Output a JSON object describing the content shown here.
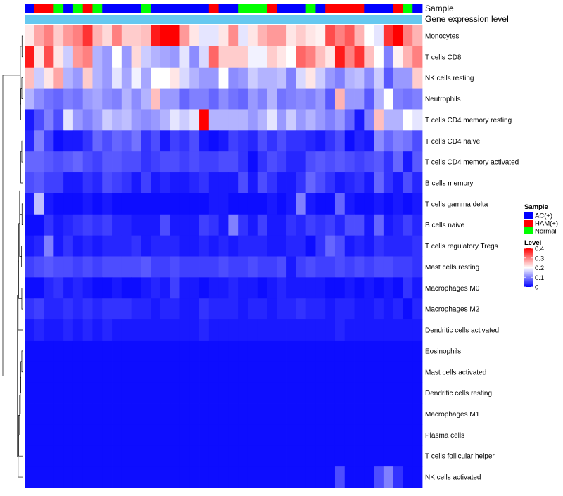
{
  "chart_data": {
    "type": "heatmap",
    "title": "",
    "annotation_rows": [
      "Sample",
      "Gene expression level"
    ],
    "sample_groups": [
      "AC(+)",
      "HAM(+)",
      "HAM(+)",
      "Normal",
      "AC(+)",
      "Normal",
      "HAM(+)",
      "Normal",
      "AC(+)",
      "AC(+)",
      "AC(+)",
      "AC(+)",
      "Normal",
      "AC(+)",
      "AC(+)",
      "AC(+)",
      "AC(+)",
      "AC(+)",
      "AC(+)",
      "HAM(+)",
      "AC(+)",
      "AC(+)",
      "Normal",
      "Normal",
      "Normal",
      "HAM(+)",
      "AC(+)",
      "AC(+)",
      "AC(+)",
      "Normal",
      "AC(+)",
      "HAM(+)",
      "HAM(+)",
      "HAM(+)",
      "HAM(+)",
      "AC(+)",
      "AC(+)",
      "AC(+)",
      "HAM(+)",
      "Normal",
      "AC(+)"
    ],
    "rows": [
      "Monocytes",
      "T cells CD8",
      "NK cells resting",
      "Neutrophils",
      "T cells CD4 memory resting",
      "T cells CD4 naive",
      "T cells CD4 memory activated",
      "B cells memory",
      "T cells gamma delta",
      "B cells naive",
      "T cells regulatory  Tregs",
      "Mast cells resting",
      "Macrophages M0",
      "Macrophages M2",
      "Dendritic cells activated",
      "Eosinophils",
      "Mast cells activated",
      "Dendritic cells resting",
      "Macrophages M1",
      "Plasma cells",
      "T cells follicular helper",
      "NK cells activated"
    ],
    "values": [
      [
        0.22,
        0.27,
        0.3,
        0.24,
        0.28,
        0.3,
        0.36,
        0.26,
        0.23,
        0.3,
        0.24,
        0.24,
        0.25,
        0.38,
        0.4,
        0.4,
        0.28,
        0.22,
        0.18,
        0.18,
        0.22,
        0.29,
        0.18,
        0.22,
        0.26,
        0.28,
        0.28,
        0.22,
        0.24,
        0.22,
        0.21,
        0.34,
        0.3,
        0.33,
        0.26,
        0.2,
        0.18,
        0.36,
        0.4,
        0.3,
        0.26
      ],
      [
        0.38,
        0.22,
        0.34,
        0.22,
        0.16,
        0.28,
        0.3,
        0.14,
        0.12,
        0.2,
        0.12,
        0.23,
        0.16,
        0.14,
        0.13,
        0.12,
        0.18,
        0.11,
        0.17,
        0.32,
        0.24,
        0.24,
        0.24,
        0.19,
        0.19,
        0.24,
        0.22,
        0.2,
        0.32,
        0.3,
        0.25,
        0.22,
        0.38,
        0.3,
        0.36,
        0.25,
        0.2,
        0.1,
        0.21,
        0.26,
        0.3
      ],
      [
        0.25,
        0.16,
        0.22,
        0.27,
        0.14,
        0.12,
        0.24,
        0.14,
        0.12,
        0.18,
        0.13,
        0.19,
        0.13,
        0.2,
        0.2,
        0.22,
        0.17,
        0.14,
        0.12,
        0.12,
        0.2,
        0.11,
        0.12,
        0.16,
        0.14,
        0.14,
        0.15,
        0.1,
        0.17,
        0.22,
        0.16,
        0.12,
        0.1,
        0.14,
        0.15,
        0.11,
        0.16,
        0.07,
        0.12,
        0.12,
        0.24
      ],
      [
        0.14,
        0.11,
        0.09,
        0.08,
        0.1,
        0.09,
        0.12,
        0.13,
        0.11,
        0.1,
        0.14,
        0.11,
        0.14,
        0.25,
        0.12,
        0.12,
        0.08,
        0.1,
        0.1,
        0.08,
        0.11,
        0.09,
        0.08,
        0.12,
        0.1,
        0.14,
        0.09,
        0.1,
        0.11,
        0.1,
        0.12,
        0.07,
        0.26,
        0.12,
        0.12,
        0.07,
        0.14,
        0.2,
        0.1,
        0.09,
        0.1
      ],
      [
        0.02,
        0.06,
        0.1,
        0.06,
        0.18,
        0.12,
        0.1,
        0.12,
        0.16,
        0.14,
        0.15,
        0.12,
        0.11,
        0.12,
        0.14,
        0.18,
        0.16,
        0.18,
        0.4,
        0.14,
        0.14,
        0.14,
        0.14,
        0.12,
        0.14,
        0.18,
        0.12,
        0.16,
        0.12,
        0.14,
        0.12,
        0.1,
        0.12,
        0.08,
        0.02,
        0.1,
        0.25,
        0.14,
        0.14,
        0.2,
        0.18
      ],
      [
        0.03,
        0.1,
        0.05,
        0.01,
        0.02,
        0.02,
        0.04,
        0.08,
        0.06,
        0.08,
        0.07,
        0.09,
        0.04,
        0.06,
        0.02,
        0.05,
        0.04,
        0.06,
        0.02,
        0.01,
        0.02,
        0.05,
        0.04,
        0.03,
        0.06,
        0.04,
        0.06,
        0.04,
        0.04,
        0.03,
        0.02,
        0.04,
        0.06,
        0.01,
        0.03,
        0.02,
        0.11,
        0.08,
        0.1,
        0.09,
        0.06
      ],
      [
        0.08,
        0.08,
        0.07,
        0.06,
        0.07,
        0.08,
        0.06,
        0.05,
        0.07,
        0.07,
        0.06,
        0.06,
        0.04,
        0.05,
        0.06,
        0.06,
        0.05,
        0.06,
        0.05,
        0.05,
        0.06,
        0.06,
        0.04,
        0.01,
        0.04,
        0.06,
        0.05,
        0.03,
        0.03,
        0.06,
        0.07,
        0.06,
        0.07,
        0.06,
        0.05,
        0.06,
        0.07,
        0.04,
        0.08,
        0.02,
        0.07
      ],
      [
        0.06,
        0.07,
        0.05,
        0.05,
        0.02,
        0.02,
        0.04,
        0.03,
        0.06,
        0.05,
        0.04,
        0.02,
        0.05,
        0.02,
        0.03,
        0.02,
        0.02,
        0.03,
        0.04,
        0.02,
        0.02,
        0.02,
        0.06,
        0.02,
        0.06,
        0.04,
        0.02,
        0.02,
        0.04,
        0.08,
        0.06,
        0.04,
        0.02,
        0.03,
        0.04,
        0.02,
        0.08,
        0.04,
        0.02,
        0.06,
        0.03
      ],
      [
        0.02,
        0.15,
        0.02,
        0.01,
        0.01,
        0.01,
        0.02,
        0.01,
        0.02,
        0.01,
        0.01,
        0.01,
        0.01,
        0.01,
        0.01,
        0.01,
        0.01,
        0.01,
        0.01,
        0.02,
        0.02,
        0.01,
        0.01,
        0.01,
        0.01,
        0.02,
        0.01,
        0.02,
        0.1,
        0.02,
        0.01,
        0.01,
        0.08,
        0.02,
        0.01,
        0.01,
        0.02,
        0.01,
        0.02,
        0.01,
        0.02
      ],
      [
        0.01,
        0.01,
        0.04,
        0.02,
        0.03,
        0.04,
        0.05,
        0.04,
        0.05,
        0.03,
        0.03,
        0.02,
        0.02,
        0.02,
        0.06,
        0.02,
        0.02,
        0.02,
        0.05,
        0.04,
        0.02,
        0.1,
        0.04,
        0.02,
        0.05,
        0.02,
        0.02,
        0.04,
        0.03,
        0.05,
        0.04,
        0.05,
        0.03,
        0.06,
        0.06,
        0.02,
        0.08,
        0.02,
        0.03,
        0.05,
        0.03
      ],
      [
        0.02,
        0.03,
        0.1,
        0.02,
        0.04,
        0.02,
        0.03,
        0.02,
        0.03,
        0.03,
        0.03,
        0.04,
        0.02,
        0.03,
        0.03,
        0.03,
        0.02,
        0.02,
        0.03,
        0.02,
        0.03,
        0.02,
        0.03,
        0.03,
        0.03,
        0.02,
        0.02,
        0.03,
        0.03,
        0.01,
        0.04,
        0.08,
        0.06,
        0.02,
        0.03,
        0.02,
        0.04,
        0.03,
        0.03,
        0.03,
        0.04
      ],
      [
        0.05,
        0.06,
        0.07,
        0.06,
        0.06,
        0.05,
        0.06,
        0.05,
        0.06,
        0.06,
        0.06,
        0.06,
        0.07,
        0.05,
        0.05,
        0.06,
        0.05,
        0.05,
        0.05,
        0.05,
        0.06,
        0.05,
        0.05,
        0.06,
        0.05,
        0.05,
        0.06,
        0.02,
        0.05,
        0.06,
        0.05,
        0.05,
        0.06,
        0.05,
        0.06,
        0.05,
        0.06,
        0.06,
        0.05,
        0.05,
        0.04
      ],
      [
        0.01,
        0.01,
        0.03,
        0.04,
        0.02,
        0.03,
        0.02,
        0.01,
        0.01,
        0.02,
        0.01,
        0.01,
        0.02,
        0.03,
        0.02,
        0.05,
        0.02,
        0.02,
        0.01,
        0.02,
        0.02,
        0.03,
        0.02,
        0.02,
        0.01,
        0.02,
        0.03,
        0.02,
        0.02,
        0.02,
        0.02,
        0.01,
        0.01,
        0.02,
        0.01,
        0.02,
        0.01,
        0.02,
        0.01,
        0.04,
        0.02
      ],
      [
        0.04,
        0.05,
        0.03,
        0.03,
        0.04,
        0.03,
        0.04,
        0.03,
        0.04,
        0.04,
        0.04,
        0.03,
        0.03,
        0.02,
        0.03,
        0.03,
        0.02,
        0.02,
        0.04,
        0.03,
        0.03,
        0.03,
        0.02,
        0.03,
        0.03,
        0.02,
        0.03,
        0.03,
        0.04,
        0.03,
        0.03,
        0.02,
        0.03,
        0.03,
        0.02,
        0.02,
        0.03,
        0.02,
        0.03,
        0.01,
        0.03
      ],
      [
        0.02,
        0.03,
        0.02,
        0.02,
        0.03,
        0.02,
        0.03,
        0.02,
        0.03,
        0.02,
        0.02,
        0.02,
        0.02,
        0.02,
        0.02,
        0.02,
        0.02,
        0.02,
        0.03,
        0.02,
        0.02,
        0.02,
        0.02,
        0.02,
        0.02,
        0.02,
        0.02,
        0.02,
        0.02,
        0.02,
        0.02,
        0.02,
        0.03,
        0.02,
        0.02,
        0.02,
        0.02,
        0.02,
        0.02,
        0.02,
        0.02
      ],
      [
        0.01,
        0.01,
        0.01,
        0.01,
        0.01,
        0.01,
        0.01,
        0.01,
        0.01,
        0.01,
        0.01,
        0.01,
        0.01,
        0.01,
        0.01,
        0.01,
        0.01,
        0.01,
        0.01,
        0.01,
        0.01,
        0.01,
        0.01,
        0.01,
        0.01,
        0.01,
        0.01,
        0.01,
        0.01,
        0.01,
        0.01,
        0.01,
        0.01,
        0.01,
        0.01,
        0.01,
        0.01,
        0.01,
        0.01,
        0.01,
        0.01
      ],
      [
        0.01,
        0.01,
        0.01,
        0.01,
        0.01,
        0.01,
        0.01,
        0.01,
        0.01,
        0.01,
        0.01,
        0.01,
        0.01,
        0.01,
        0.01,
        0.01,
        0.01,
        0.01,
        0.01,
        0.01,
        0.01,
        0.01,
        0.01,
        0.01,
        0.01,
        0.01,
        0.01,
        0.01,
        0.01,
        0.01,
        0.01,
        0.01,
        0.01,
        0.01,
        0.01,
        0.01,
        0.01,
        0.01,
        0.01,
        0.01,
        0.01
      ],
      [
        0.01,
        0.01,
        0.01,
        0.01,
        0.01,
        0.01,
        0.01,
        0.01,
        0.01,
        0.01,
        0.01,
        0.01,
        0.01,
        0.01,
        0.01,
        0.01,
        0.01,
        0.01,
        0.01,
        0.01,
        0.01,
        0.01,
        0.01,
        0.01,
        0.01,
        0.01,
        0.01,
        0.01,
        0.01,
        0.01,
        0.01,
        0.01,
        0.01,
        0.01,
        0.01,
        0.01,
        0.01,
        0.01,
        0.01,
        0.01,
        0.01
      ],
      [
        0.01,
        0.01,
        0.01,
        0.01,
        0.01,
        0.01,
        0.01,
        0.01,
        0.01,
        0.01,
        0.01,
        0.01,
        0.01,
        0.01,
        0.01,
        0.01,
        0.01,
        0.01,
        0.01,
        0.01,
        0.01,
        0.01,
        0.01,
        0.01,
        0.01,
        0.01,
        0.01,
        0.01,
        0.01,
        0.01,
        0.01,
        0.01,
        0.01,
        0.01,
        0.01,
        0.01,
        0.01,
        0.01,
        0.01,
        0.01,
        0.01
      ],
      [
        0.01,
        0.01,
        0.01,
        0.01,
        0.01,
        0.01,
        0.01,
        0.01,
        0.01,
        0.01,
        0.01,
        0.01,
        0.01,
        0.01,
        0.01,
        0.01,
        0.01,
        0.01,
        0.01,
        0.01,
        0.01,
        0.01,
        0.01,
        0.01,
        0.01,
        0.01,
        0.01,
        0.01,
        0.01,
        0.01,
        0.01,
        0.01,
        0.01,
        0.01,
        0.01,
        0.01,
        0.01,
        0.01,
        0.01,
        0.01,
        0.01
      ],
      [
        0.01,
        0.01,
        0.01,
        0.01,
        0.01,
        0.01,
        0.01,
        0.01,
        0.01,
        0.01,
        0.01,
        0.01,
        0.01,
        0.01,
        0.01,
        0.01,
        0.01,
        0.01,
        0.01,
        0.01,
        0.01,
        0.01,
        0.01,
        0.01,
        0.01,
        0.01,
        0.01,
        0.01,
        0.01,
        0.01,
        0.01,
        0.01,
        0.01,
        0.01,
        0.01,
        0.01,
        0.01,
        0.01,
        0.01,
        0.01,
        0.01
      ],
      [
        0.01,
        0.01,
        0.01,
        0.01,
        0.01,
        0.01,
        0.01,
        0.01,
        0.01,
        0.01,
        0.01,
        0.01,
        0.01,
        0.01,
        0.01,
        0.01,
        0.01,
        0.01,
        0.01,
        0.01,
        0.01,
        0.01,
        0.01,
        0.01,
        0.01,
        0.01,
        0.01,
        0.01,
        0.01,
        0.01,
        0.01,
        0.01,
        0.06,
        0.01,
        0.01,
        0.01,
        0.06,
        0.1,
        0.04,
        0.01,
        0.01
      ]
    ],
    "color_scale": {
      "min": 0,
      "mid": 0.2,
      "max": 0.4,
      "low_color": "#0000ff",
      "mid_color": "#ffffff",
      "high_color": "#ff0000"
    },
    "legend": {
      "sample_title": "Sample",
      "sample_entries": [
        {
          "label": "AC(+)",
          "color": "#0000ff"
        },
        {
          "label": "HAM(+)",
          "color": "#ff0000"
        },
        {
          "label": "Normal",
          "color": "#00ff00"
        }
      ],
      "level_title": "Level",
      "level_ticks": [
        0.4,
        0.3,
        0.2,
        0.1,
        0
      ],
      "level_tick_labels": [
        "0.4",
        "0.3",
        "0.2",
        "0.1",
        "0"
      ]
    },
    "expression_bar_color": "#66c8f0",
    "dendrogram_merge_order": [
      [
        0,
        1
      ],
      [
        2,
        3
      ],
      [
        4,
        "n1"
      ],
      [
        "n0",
        "n2"
      ],
      [
        5,
        6
      ],
      [
        7,
        "n4"
      ],
      [
        8,
        9
      ],
      [
        "n5",
        "n6"
      ],
      [
        10,
        11
      ],
      [
        "n7",
        "n8"
      ],
      [
        12,
        13
      ],
      [
        "n9",
        "n10"
      ],
      [
        14,
        "n11"
      ],
      [
        15,
        16
      ],
      [
        17,
        "n13"
      ],
      [
        18,
        "n14"
      ],
      [
        19,
        "n15"
      ],
      [
        20,
        "n16"
      ],
      [
        21,
        "n17"
      ],
      [
        "n12",
        "n18"
      ],
      [
        "n3",
        "n19"
      ]
    ]
  }
}
